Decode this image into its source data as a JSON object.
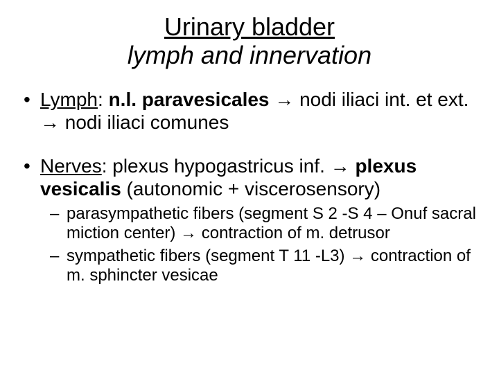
{
  "title": {
    "line1": "Urinary bladder",
    "line2": "lymph and innervation"
  },
  "bullets": [
    {
      "label": "Lymph",
      "text_before_bold": ": ",
      "bold": "n.l. paravesicales",
      "text_after_bold": " → nodi iliaci int. et ext. → nodi iliaci comunes"
    },
    {
      "label": "Nerves",
      "text_before_bold": ":  plexus hypogastricus inf. → ",
      "bold": "plexus vesicalis",
      "text_after_bold": " (autonomic + viscerosensory)",
      "sub": [
        "parasympathetic fibers  (segment S 2 -S 4 – Onuf sacral miction center) → contraction of m. detrusor",
        "sympathetic fibers (segment T 11 -L3) → contraction of m. sphincter vesicae"
      ]
    }
  ]
}
